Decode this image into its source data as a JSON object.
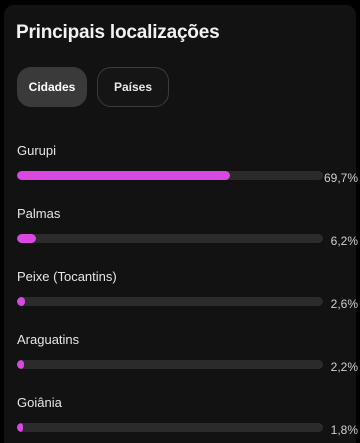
{
  "header": {
    "title": "Principais localizações"
  },
  "tabs": [
    {
      "label": "Cidades",
      "active": true
    },
    {
      "label": "Países",
      "active": false
    }
  ],
  "colors": {
    "accent": "#d948e0",
    "track": "#2b2b2b",
    "card_background": "#121212"
  },
  "locations": [
    {
      "name": "Gurupi",
      "percent_label": "69,7%",
      "share": 0.697
    },
    {
      "name": "Palmas",
      "percent_label": "6,2%",
      "share": 0.062
    },
    {
      "name": "Peixe (Tocantins)",
      "percent_label": "2,6%",
      "share": 0.026
    },
    {
      "name": "Araguatins",
      "percent_label": "2,2%",
      "share": 0.022
    },
    {
      "name": "Goiânia",
      "percent_label": "1,8%",
      "share": 0.018
    }
  ]
}
